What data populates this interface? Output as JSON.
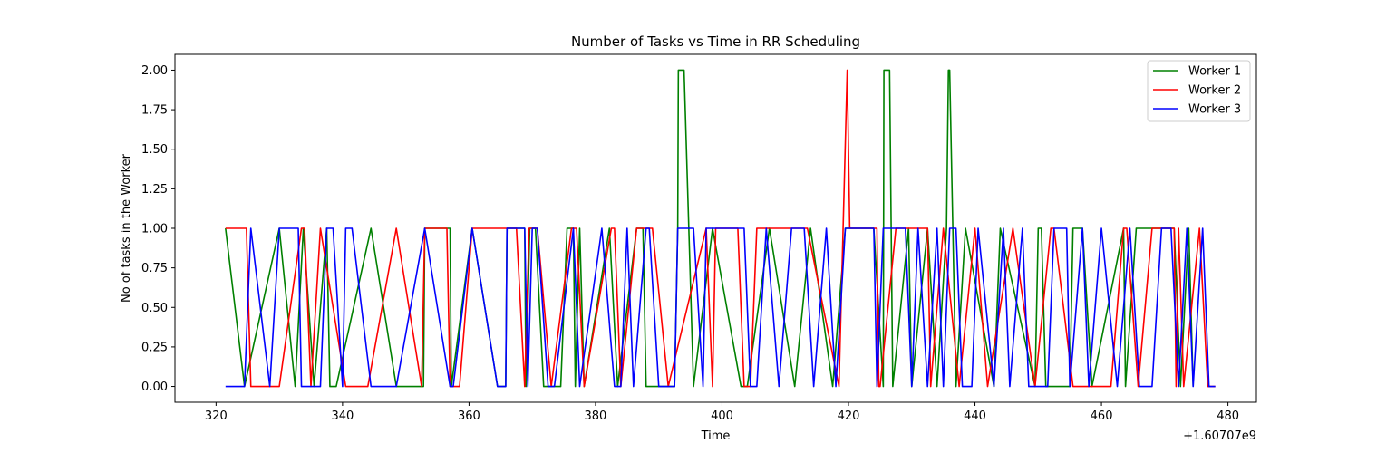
{
  "chart_data": {
    "type": "line",
    "title": "Number of Tasks vs Time in RR Scheduling",
    "xlabel": "Time",
    "ylabel": "No of tasks in the Worker",
    "x_offset_label": "+1.60707e9",
    "xlim": [
      313.5,
      484.5
    ],
    "ylim": [
      -0.1,
      2.1
    ],
    "xticks": [
      320,
      340,
      360,
      380,
      400,
      420,
      440,
      460,
      480
    ],
    "xtick_labels": [
      "320",
      "340",
      "360",
      "380",
      "400",
      "420",
      "440",
      "460",
      "480"
    ],
    "yticks": [
      0,
      0.25,
      0.5,
      0.75,
      1.0,
      1.25,
      1.5,
      1.75,
      2.0
    ],
    "ytick_labels": [
      "0.00",
      "0.25",
      "0.50",
      "0.75",
      "1.00",
      "1.25",
      "1.50",
      "1.75",
      "2.00"
    ],
    "grid": false,
    "legend_position": "top-right",
    "series": [
      {
        "name": "Worker 1",
        "color": "#008000",
        "x": [
          321.5,
          324.5,
          330.0,
          332.5,
          333.8,
          335.5,
          337.5,
          338.0,
          339.0,
          344.5,
          348.5,
          352.8,
          353.0,
          357.0,
          357.2,
          360.5,
          364.5,
          365.8,
          366.0,
          368.8,
          369.0,
          369.6,
          370.5,
          371.8,
          374.5,
          375.5,
          376.5,
          376.8,
          377.5,
          378.2,
          382.2,
          383.5,
          386.5,
          387.5,
          388.0,
          392.5,
          393.0,
          393.1,
          394.0,
          395.5,
          398.5,
          403.0,
          404.0,
          407.5,
          411.5,
          414.0,
          417.5,
          419.5,
          420.0,
          424.0,
          425.5,
          425.6,
          426.5,
          427.0,
          429.5,
          430.0,
          432.5,
          434.0,
          435.5,
          435.8,
          436.0,
          437.0,
          438.5,
          443.0,
          444.0,
          449.5,
          450.0,
          450.5,
          451.2,
          455.0,
          455.5,
          457.0,
          458.5,
          463.5,
          463.8,
          465.5,
          468.0,
          471.5,
          472.5,
          473.8,
          474.5
        ],
        "y": [
          1,
          0,
          1,
          0,
          1,
          0,
          1,
          0,
          0,
          1,
          0,
          0,
          1,
          1,
          0,
          1,
          0,
          0,
          1,
          1,
          0,
          1,
          1,
          0,
          0,
          1,
          1,
          0,
          1,
          0,
          1,
          0,
          1,
          1,
          0,
          0,
          1,
          2,
          2,
          0,
          1,
          0,
          0,
          1,
          0,
          1,
          0,
          1,
          1,
          1,
          0,
          2,
          2,
          0,
          1,
          0,
          1,
          0,
          1,
          2,
          2,
          0,
          1,
          0,
          1,
          0,
          1,
          1,
          0,
          0,
          1,
          1,
          0,
          1,
          0,
          1,
          1,
          1,
          0,
          1,
          0
        ]
      },
      {
        "name": "Worker 2",
        "color": "#ff0000",
        "x": [
          321.5,
          324.8,
          325.5,
          330.0,
          333.5,
          334.0,
          335.0,
          336.5,
          340.5,
          341.0,
          344.0,
          348.5,
          352.5,
          353.0,
          356.5,
          357.0,
          358.5,
          360.5,
          365.0,
          366.0,
          367.5,
          368.8,
          369.5,
          370.8,
          373.0,
          376.2,
          377.0,
          378.2,
          382.5,
          383.0,
          384.0,
          386.5,
          389.0,
          391.5,
          397.5,
          398.5,
          399.0,
          402.5,
          403.5,
          404.5,
          405.5,
          411.5,
          412.0,
          413.5,
          418.5,
          419.8,
          420.2,
          421.0,
          424.5,
          424.8,
          425.0,
          427.5,
          429.5,
          432.5,
          433.0,
          435.0,
          437.5,
          440.0,
          442.0,
          446.0,
          449.5,
          452.0,
          452.5,
          455.5,
          456.5,
          461.5,
          463.5,
          464.0,
          465.8,
          468.0,
          471.5,
          471.8,
          472.2,
          473.0,
          475.5,
          476.8,
          478.0
        ],
        "y": [
          1,
          1,
          0,
          0,
          1,
          1,
          0,
          1,
          0,
          0,
          0,
          1,
          0,
          1,
          1,
          0,
          0,
          1,
          1,
          1,
          1,
          0,
          1,
          1,
          0,
          1,
          1,
          0,
          1,
          1,
          0,
          1,
          1,
          0,
          1,
          0,
          1,
          1,
          0,
          0,
          1,
          1,
          1,
          1,
          0,
          2,
          1,
          1,
          1,
          0,
          0,
          1,
          1,
          1,
          0,
          1,
          0,
          1,
          0,
          1,
          0,
          1,
          1,
          0,
          0,
          0,
          1,
          1,
          0,
          1,
          1,
          0,
          1,
          0,
          1,
          0,
          0
        ]
      },
      {
        "name": "Worker 3",
        "color": "#0000ff",
        "x": [
          321.5,
          324.5,
          325.5,
          328.5,
          330.0,
          333.0,
          333.5,
          336.5,
          337.5,
          338.5,
          340.0,
          340.5,
          341.5,
          344.5,
          348.5,
          353.0,
          357.0,
          357.5,
          360.5,
          364.5,
          365.8,
          366.0,
          368.8,
          369.3,
          370.0,
          370.8,
          372.5,
          373.5,
          376.5,
          377.5,
          381.0,
          383.0,
          384.0,
          385.0,
          386.0,
          388.0,
          388.5,
          390.0,
          392.5,
          393.0,
          394.0,
          395.5,
          397.0,
          397.5,
          403.5,
          404.5,
          405.5,
          407.0,
          409.0,
          411.0,
          413.0,
          414.5,
          416.5,
          418.0,
          419.5,
          420.5,
          424.0,
          424.5,
          425.5,
          429.0,
          430.0,
          431.0,
          432.5,
          434.0,
          435.0,
          436.0,
          437.0,
          438.0,
          439.5,
          440.5,
          443.0,
          444.5,
          445.5,
          447.5,
          448.5,
          451.5,
          452.5,
          454.5,
          455.0,
          457.0,
          458.0,
          460.0,
          462.5,
          464.5,
          466.0,
          468.0,
          469.5,
          471.0,
          472.2,
          473.5,
          474.5,
          476.0,
          477.0,
          477.5,
          478.0
        ],
        "y": [
          0,
          0,
          1,
          0,
          1,
          1,
          0,
          0,
          1,
          1,
          0,
          1,
          1,
          0,
          0,
          1,
          0,
          0,
          1,
          0,
          0,
          1,
          1,
          0,
          1,
          1,
          0,
          0,
          1,
          0,
          1,
          0,
          0,
          1,
          0,
          1,
          1,
          0,
          0,
          1,
          1,
          1,
          0,
          1,
          1,
          0,
          0,
          1,
          0,
          1,
          1,
          0,
          1,
          0,
          1,
          1,
          1,
          0,
          1,
          1,
          0,
          1,
          0,
          1,
          0,
          1,
          1,
          0,
          0,
          1,
          0,
          1,
          0,
          1,
          0,
          0,
          1,
          1,
          0,
          1,
          0,
          1,
          0,
          1,
          0,
          0,
          1,
          1,
          0,
          1,
          0,
          1,
          0,
          0,
          0
        ]
      }
    ]
  }
}
